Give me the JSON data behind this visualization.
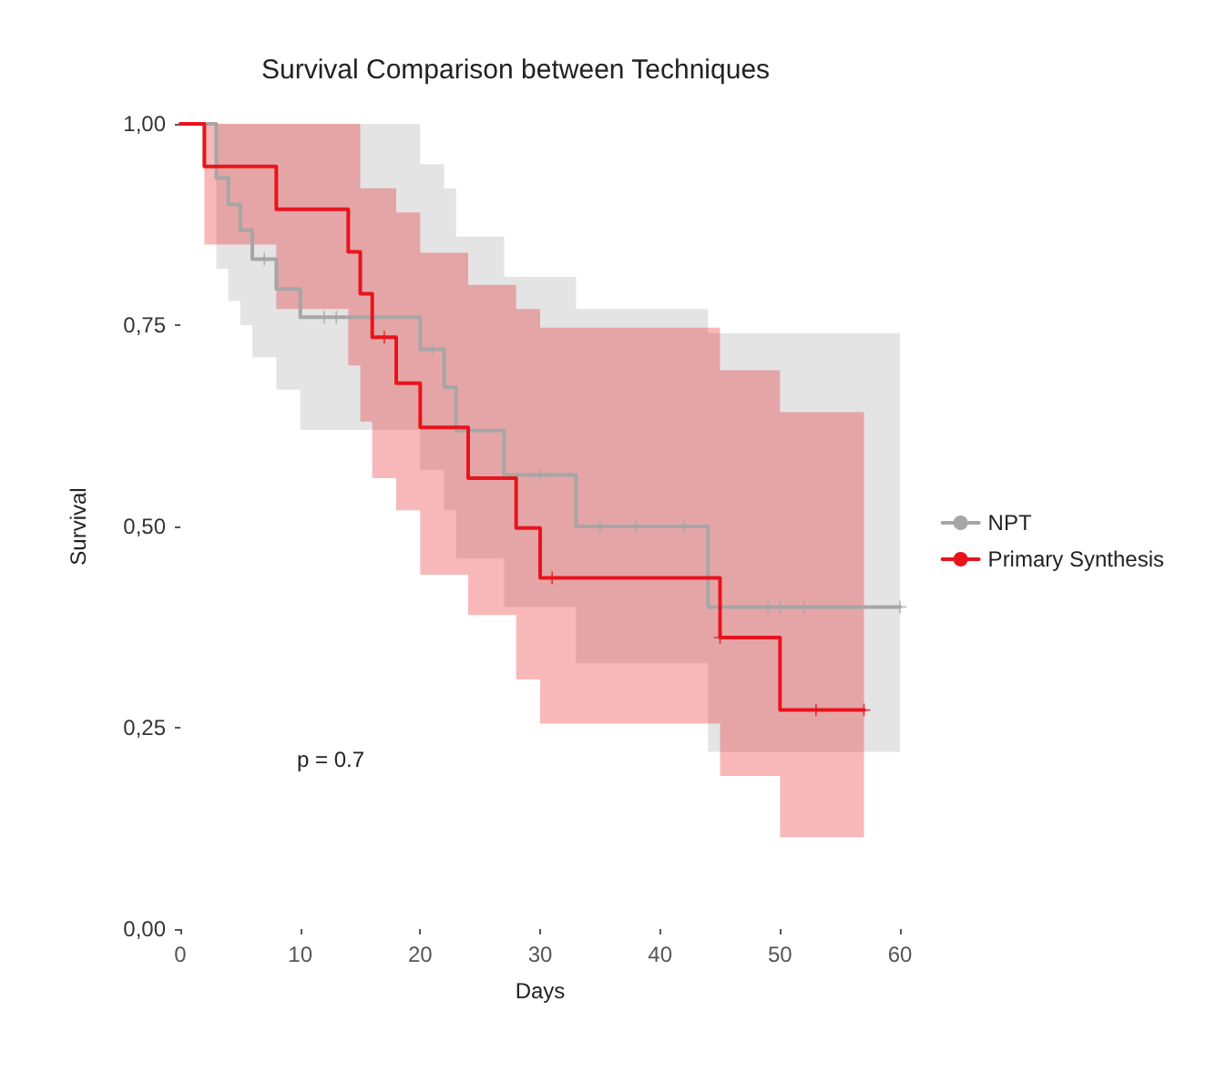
{
  "chart_data": {
    "type": "step",
    "title": "Survival Comparison between Techniques",
    "xlabel": "Days",
    "ylabel": "Survival",
    "xlim": [
      0,
      60
    ],
    "ylim": [
      0,
      1
    ],
    "xticks": [
      0,
      10,
      20,
      30,
      40,
      50,
      60
    ],
    "yticks": [
      {
        "value": 0,
        "label": "0,00"
      },
      {
        "value": 0.25,
        "label": "0,25"
      },
      {
        "value": 0.5,
        "label": "0,50"
      },
      {
        "value": 0.75,
        "label": "0,75"
      },
      {
        "value": 1,
        "label": "1,00"
      }
    ],
    "grid": false,
    "legend": "right",
    "annotations": [
      "p = 0.7"
    ],
    "series": [
      {
        "name": "NPT",
        "color": "#a6a6a6",
        "marker": "none",
        "x": [
          0,
          3,
          4,
          5,
          6,
          8,
          10,
          20,
          22,
          23,
          27,
          33,
          44,
          60
        ],
        "values": [
          1,
          0.933,
          0.9,
          0.868,
          0.832,
          0.795,
          0.76,
          0.72,
          0.673,
          0.619,
          0.564,
          0.5,
          0.4,
          0.4
        ],
        "upper": [
          1,
          1,
          1,
          1,
          1,
          1,
          1,
          0.95,
          0.92,
          0.86,
          0.81,
          0.77,
          0.74,
          0.74
        ],
        "lower": [
          1,
          0.82,
          0.78,
          0.75,
          0.71,
          0.67,
          0.62,
          0.57,
          0.52,
          0.46,
          0.4,
          0.33,
          0.22,
          0.22
        ]
      },
      {
        "name": "Primary Synthesis",
        "color": "#e8141c",
        "marker": "none",
        "x": [
          0,
          2,
          8,
          14,
          15,
          16,
          18,
          20,
          24,
          28,
          30,
          45,
          50,
          57
        ],
        "values": [
          1,
          0.947,
          0.894,
          0.841,
          0.789,
          0.735,
          0.678,
          0.623,
          0.56,
          0.498,
          0.436,
          0.362,
          0.272,
          0.272
        ],
        "upper": [
          1,
          1,
          1,
          1,
          0.92,
          0.92,
          0.89,
          0.84,
          0.8,
          0.77,
          0.747,
          0.694,
          0.642,
          0.642
        ],
        "lower": [
          1,
          0.85,
          0.77,
          0.7,
          0.63,
          0.56,
          0.52,
          0.44,
          0.39,
          0.31,
          0.255,
          0.19,
          0.114,
          0.114
        ]
      },
      {
        "type": "scatter",
        "color": "#a6a6a6",
        "marker": "cross",
        "x": [
          7,
          12,
          13,
          21,
          30,
          35,
          38,
          42,
          49,
          50,
          52,
          60
        ],
        "values": [
          0.832,
          0.76,
          0.76,
          0.72,
          0.564,
          0.5,
          0.5,
          0.5,
          0.4,
          0.4,
          0.4,
          0.4
        ]
      },
      {
        "type": "scatter",
        "color": "#e8141c",
        "marker": "cross",
        "x": [
          17,
          31,
          45,
          53,
          57
        ],
        "values": [
          0.735,
          0.436,
          0.362,
          0.272,
          0.272
        ]
      }
    ]
  }
}
